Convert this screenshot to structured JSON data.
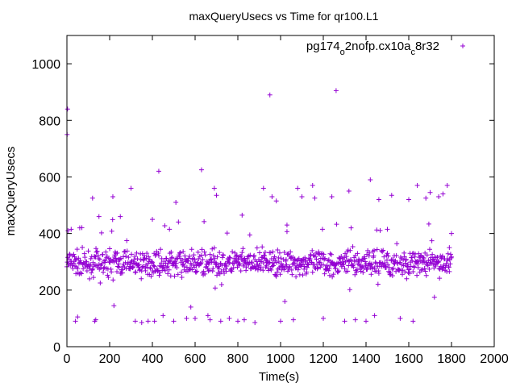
{
  "chart_data": {
    "type": "scatter",
    "title": "maxQueryUsecs vs Time for qr100.L1",
    "xlabel": "Time(s)",
    "ylabel": "maxQueryUsecs",
    "xlim": [
      0,
      2000
    ],
    "ylim": [
      0,
      1100
    ],
    "x_ticks": [
      "0",
      "200",
      "400",
      "600",
      "800",
      "1000",
      "1200",
      "1400",
      "1600",
      "1800",
      "2000"
    ],
    "y_ticks": [
      "0",
      "200",
      "400",
      "600",
      "800",
      "1000"
    ],
    "grid": false,
    "legend_position": "top-right",
    "marker": "plus",
    "series": [
      {
        "name_parts": [
          "pg174",
          "o",
          "2nofp.cx10a",
          "c",
          "8r32"
        ],
        "color": "#9400d3",
        "band": {
          "x_start": 0,
          "x_end": 1800,
          "x_step": 2,
          "mean": 295,
          "spread": 40
        },
        "points": [
          [
            1,
            750
          ],
          [
            3,
            840
          ],
          [
            5,
            410
          ],
          [
            20,
            415
          ],
          [
            40,
            90
          ],
          [
            50,
            105
          ],
          [
            60,
            420
          ],
          [
            120,
            525
          ],
          [
            130,
            90
          ],
          [
            135,
            95
          ],
          [
            150,
            460
          ],
          [
            200,
            300
          ],
          [
            215,
            530
          ],
          [
            220,
            145
          ],
          [
            250,
            460
          ],
          [
            300,
            560
          ],
          [
            320,
            90
          ],
          [
            350,
            85
          ],
          [
            380,
            90
          ],
          [
            400,
            450
          ],
          [
            410,
            90
          ],
          [
            430,
            620
          ],
          [
            450,
            110
          ],
          [
            480,
            415
          ],
          [
            500,
            90
          ],
          [
            510,
            510
          ],
          [
            560,
            100
          ],
          [
            580,
            140
          ],
          [
            600,
            100
          ],
          [
            630,
            625
          ],
          [
            660,
            110
          ],
          [
            670,
            95
          ],
          [
            690,
            560
          ],
          [
            700,
            535
          ],
          [
            720,
            90
          ],
          [
            760,
            100
          ],
          [
            800,
            90
          ],
          [
            820,
            465
          ],
          [
            830,
            95
          ],
          [
            880,
            85
          ],
          [
            920,
            560
          ],
          [
            950,
            890
          ],
          [
            960,
            530
          ],
          [
            980,
            515
          ],
          [
            1000,
            90
          ],
          [
            1020,
            160
          ],
          [
            1030,
            430
          ],
          [
            1060,
            95
          ],
          [
            1080,
            560
          ],
          [
            1100,
            530
          ],
          [
            1150,
            570
          ],
          [
            1160,
            525
          ],
          [
            1200,
            100
          ],
          [
            1240,
            530
          ],
          [
            1260,
            905
          ],
          [
            1300,
            90
          ],
          [
            1320,
            550
          ],
          [
            1330,
            420
          ],
          [
            1350,
            95
          ],
          [
            1400,
            90
          ],
          [
            1420,
            590
          ],
          [
            1440,
            110
          ],
          [
            1460,
            520
          ],
          [
            1500,
            415
          ],
          [
            1520,
            535
          ],
          [
            1560,
            100
          ],
          [
            1600,
            520
          ],
          [
            1620,
            90
          ],
          [
            1640,
            570
          ],
          [
            1680,
            525
          ],
          [
            1700,
            545
          ],
          [
            1720,
            175
          ],
          [
            1740,
            530
          ],
          [
            1760,
            540
          ],
          [
            1780,
            570
          ],
          [
            1790,
            350
          ],
          [
            1800,
            400
          ]
        ]
      }
    ]
  }
}
